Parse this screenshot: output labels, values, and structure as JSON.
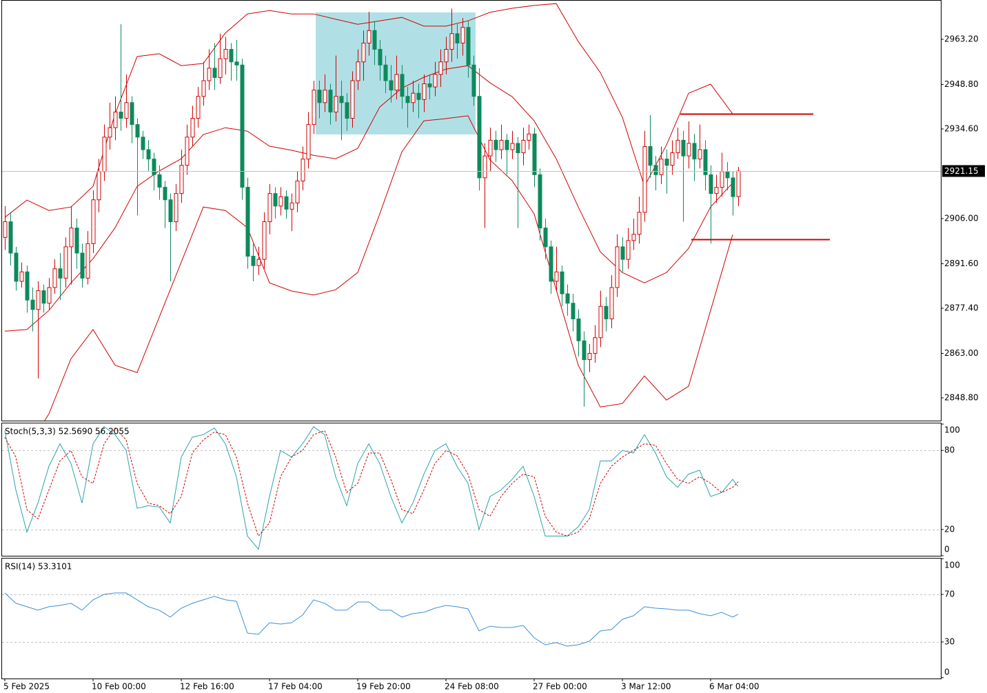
{
  "chart_data": [
    {
      "type": "candlestick",
      "open": [
        2900,
        2905,
        2895,
        2886,
        2889,
        2880,
        2877,
        2883,
        2879,
        2884,
        2890,
        2887,
        2897,
        2903,
        2895,
        2887,
        2898,
        2912,
        2921,
        2932,
        2935,
        2940,
        2938,
        2943,
        2936,
        2932,
        2928,
        2925,
        2920,
        2916,
        2912,
        2905,
        2914,
        2923,
        2932,
        2938,
        2945,
        2950,
        2954,
        2951,
        2957,
        2960,
        2956,
        2955,
        2916,
        2894,
        2891,
        2893,
        2905,
        2914,
        2910,
        2913,
        2909,
        2911,
        2918,
        2925,
        2936,
        2947,
        2943,
        2947,
        2940,
        2945,
        2943,
        2938,
        2950,
        2956,
        2962,
        2966,
        2960,
        2955,
        2950,
        2947,
        2952,
        2945,
        2943,
        2946,
        2944,
        2949,
        2948,
        2952,
        2956,
        2960,
        2965,
        2962,
        2967,
        2955,
        2945,
        2919,
        2926,
        2931,
        2928,
        2931,
        2928,
        2930,
        2927,
        2931,
        2933,
        2920,
        2903,
        2897,
        2886,
        2889,
        2882,
        2879,
        2874,
        2867,
        2861,
        2863,
        2868,
        2878,
        2874,
        2884,
        2897,
        2893,
        2899,
        2901,
        2908,
        2929,
        2923,
        2920,
        2925,
        2923,
        2927,
        2931,
        2926,
        2930,
        2925,
        2928,
        2920,
        2914,
        2916,
        2921,
        2919,
        2913
      ],
      "high": [
        2910,
        2908,
        2897,
        2892,
        2891,
        2884,
        2886,
        2885,
        2887,
        2893,
        2895,
        2900,
        2910,
        2906,
        2898,
        2902,
        2915,
        2925,
        2936,
        2943,
        2945,
        2968,
        2952,
        2945,
        2938,
        2934,
        2931,
        2927,
        2923,
        2918,
        2914,
        2917,
        2928,
        2936,
        2942,
        2948,
        2956,
        2960,
        2962,
        2965,
        2964,
        2962,
        2963,
        2957,
        2919,
        2898,
        2897,
        2908,
        2917,
        2916,
        2916,
        2915,
        2914,
        2921,
        2929,
        2940,
        2950,
        2950,
        2952,
        2949,
        2958,
        2950,
        2946,
        2953,
        2960,
        2966,
        2972,
        2969,
        2963,
        2958,
        2955,
        2958,
        2955,
        2948,
        2950,
        2949,
        2952,
        2952,
        2956,
        2960,
        2964,
        2973,
        2968,
        2970,
        2969,
        2958,
        2954,
        2930,
        2935,
        2934,
        2936,
        2933,
        2934,
        2932,
        2935,
        2936,
        2935,
        2922,
        2906,
        2899,
        2897,
        2891,
        2885,
        2882,
        2877,
        2870,
        2866,
        2872,
        2883,
        2881,
        2888,
        2901,
        2900,
        2903,
        2906,
        2913,
        2934,
        2939,
        2926,
        2929,
        2928,
        2931,
        2935,
        2934,
        2937,
        2933,
        2936,
        2931,
        2923,
        2920,
        2927,
        2924,
        2921,
        2922.5
      ],
      "low": [
        2896,
        2891,
        2883,
        2884,
        2876,
        2870,
        2855,
        2876,
        2877,
        2882,
        2880,
        2884,
        2885,
        2890,
        2884,
        2885,
        2895,
        2908,
        2918,
        2928,
        2931,
        2934,
        2935,
        2930,
        2907,
        2925,
        2921,
        2915,
        2912,
        2903,
        2886,
        2902,
        2911,
        2920,
        2929,
        2935,
        2942,
        2947,
        2947,
        2949,
        2952,
        2950,
        2950,
        2912,
        2890,
        2886,
        2888,
        2890,
        2901,
        2906,
        2907,
        2906,
        2902,
        2908,
        2915,
        2922,
        2933,
        2938,
        2940,
        2936,
        2937,
        2931,
        2934,
        2935,
        2947,
        2950,
        2958,
        2955,
        2950,
        2946,
        2943,
        2944,
        2941,
        2935,
        2940,
        2938,
        2940,
        2944,
        2945,
        2948,
        2952,
        2956,
        2957,
        2958,
        2951,
        2942,
        2915,
        2903,
        2921,
        2924,
        2925,
        2920,
        2925,
        2903,
        2923,
        2928,
        2916,
        2899,
        2893,
        2882,
        2883,
        2878,
        2875,
        2870,
        2862,
        2846,
        2857,
        2860,
        2865,
        2870,
        2871,
        2881,
        2889,
        2890,
        2896,
        2898,
        2905,
        2919,
        2915,
        2917,
        2914,
        2920,
        2925,
        2905,
        2922,
        2918,
        2922,
        2915,
        2898,
        2911,
        2913,
        2915,
        2907,
        2910
      ],
      "close": [
        2905,
        2895,
        2886,
        2889,
        2880,
        2877,
        2883,
        2879,
        2884,
        2890,
        2887,
        2897,
        2903,
        2895,
        2887,
        2898,
        2912,
        2921,
        2932,
        2935,
        2940,
        2938,
        2943,
        2936,
        2932,
        2928,
        2925,
        2920,
        2916,
        2912,
        2905,
        2914,
        2923,
        2932,
        2938,
        2945,
        2950,
        2954,
        2951,
        2957,
        2960,
        2956,
        2955,
        2916,
        2894,
        2891,
        2893,
        2905,
        2914,
        2910,
        2913,
        2909,
        2911,
        2918,
        2925,
        2936,
        2947,
        2943,
        2947,
        2940,
        2945,
        2943,
        2938,
        2950,
        2956,
        2962,
        2966,
        2960,
        2955,
        2950,
        2947,
        2952,
        2945,
        2943,
        2946,
        2944,
        2949,
        2948,
        2952,
        2956,
        2960,
        2965,
        2962,
        2967,
        2955,
        2945,
        2919,
        2926,
        2931,
        2928,
        2931,
        2928,
        2930,
        2927,
        2931,
        2933,
        2920,
        2903,
        2897,
        2886,
        2889,
        2882,
        2879,
        2874,
        2867,
        2861,
        2863,
        2868,
        2878,
        2874,
        2884,
        2897,
        2893,
        2899,
        2901,
        2908,
        2929,
        2923,
        2920,
        2925,
        2923,
        2927,
        2931,
        2926,
        2930,
        2925,
        2928,
        2920,
        2914,
        2916,
        2921,
        2919,
        2913,
        2921.15
      ],
      "up_color": "#d00000",
      "down_color": "#0d8a5c",
      "bands": {
        "color": "#d00000",
        "x": [
          0,
          4,
          8,
          12,
          16,
          20,
          24,
          28,
          32,
          36,
          40,
          44,
          48,
          52,
          56,
          60,
          64,
          68,
          72,
          76,
          80,
          84,
          88,
          92,
          96,
          100,
          104,
          108,
          112,
          116,
          120,
          124,
          128,
          132
        ],
        "upper": [
          2906.4,
          2911.9,
          2908.6,
          2909.7,
          2916.3,
          2939.4,
          2957.7,
          2958.6,
          2954.8,
          2955.5,
          2965.2,
          2971.3,
          2972.4,
          2971.3,
          2971.3,
          2969.6,
          2968.0,
          2969.1,
          2970.2,
          2967.4,
          2967.4,
          2969.1,
          2971.8,
          2973.1,
          2974.0,
          2974.6,
          2962.5,
          2952.6,
          2938.3,
          2916.3,
          2929.5,
          2946.0,
          2948.9,
          2939.4
        ],
        "middle": [
          2870.1,
          2870.6,
          2876.7,
          2885.5,
          2893.2,
          2903.1,
          2916.3,
          2921.2,
          2925.1,
          2932.8,
          2935.0,
          2933.9,
          2929.1,
          2927.8,
          2926.2,
          2925.1,
          2928.4,
          2941.6,
          2947.6,
          2951.1,
          2953.7,
          2954.8,
          2949.3,
          2944.9,
          2937.2,
          2925.1,
          2909.7,
          2895.4,
          2888.8,
          2885.5,
          2888.8,
          2896.5,
          2909.7,
          2917.4
        ],
        "lower": [
          2832.7,
          2832.7,
          2843.7,
          2861.3,
          2870.6,
          2859.2,
          2856.9,
          2874.5,
          2892.1,
          2909.7,
          2908.6,
          2903.1,
          2885.5,
          2882.9,
          2881.6,
          2883.3,
          2888.8,
          2907.5,
          2927.3,
          2937.2,
          2937.9,
          2938.8,
          2924.7,
          2918.1,
          2907.5,
          2883.3,
          2859.2,
          2845.9,
          2847.0,
          2855.8,
          2848.1,
          2852.5,
          2876.7,
          2900.9
        ]
      },
      "last_price": 2921.15,
      "last_color": "#000000",
      "xlim": [
        -0.5,
        169.75
      ],
      "ylim": [
        2841.54,
        2975.74
      ],
      "yticks": [
        {
          "value": 2963.2,
          "label": "2963.20"
        },
        {
          "value": 2948.8,
          "label": "2948.80"
        },
        {
          "value": 2934.6,
          "label": "2934.60"
        },
        {
          "value": 2906.0,
          "label": "2906.00"
        },
        {
          "value": 2891.6,
          "label": "2891.60"
        },
        {
          "value": 2877.4,
          "label": "2877.40"
        },
        {
          "value": 2863.0,
          "label": "2863.00"
        },
        {
          "value": 2848.8,
          "label": "2848.80"
        }
      ]
    },
    {
      "type": "line",
      "title": "Stoch(5,3,3) 52.5690 56.2055",
      "x": [
        0,
        2,
        4,
        6,
        8,
        10,
        12,
        14,
        16,
        18,
        20,
        22,
        24,
        26,
        28,
        30,
        32,
        34,
        36,
        38,
        40,
        42,
        44,
        46,
        48,
        50,
        52,
        54,
        56,
        58,
        60,
        62,
        64,
        66,
        68,
        70,
        72,
        74,
        76,
        78,
        80,
        82,
        84,
        86,
        88,
        90,
        92,
        94,
        96,
        98,
        100,
        102,
        104,
        106,
        108,
        110,
        112,
        114,
        116,
        118,
        120,
        122,
        124,
        126,
        128,
        130,
        132,
        133
      ],
      "series": [
        {
          "color": "#2aa3a8",
          "dash": false,
          "values": [
            95,
            50,
            18,
            40,
            68,
            85,
            70,
            40,
            85,
            98,
            92,
            80,
            36,
            38,
            37,
            25,
            75,
            90,
            92,
            97,
            85,
            60,
            15,
            5,
            45,
            80,
            75,
            85,
            98,
            92,
            60,
            38,
            70,
            85,
            70,
            45,
            25,
            40,
            62,
            80,
            85,
            68,
            55,
            20,
            45,
            50,
            58,
            68,
            45,
            15,
            15,
            15,
            22,
            35,
            72,
            72,
            80,
            78,
            92,
            78,
            60,
            52,
            62,
            65,
            45,
            48,
            58,
            52.569
          ]
        },
        {
          "color": "#d00000",
          "dash": true,
          "values": [
            90,
            75,
            35,
            28,
            50,
            72,
            80,
            60,
            55,
            85,
            97,
            88,
            55,
            40,
            38,
            32,
            45,
            78,
            88,
            94,
            92,
            75,
            40,
            15,
            25,
            60,
            75,
            80,
            92,
            95,
            75,
            48,
            55,
            78,
            78,
            58,
            35,
            32,
            50,
            70,
            80,
            76,
            62,
            35,
            30,
            45,
            55,
            62,
            60,
            30,
            18,
            15,
            18,
            28,
            55,
            68,
            75,
            80,
            85,
            84,
            70,
            58,
            55,
            60,
            55,
            48,
            52,
            56.2055
          ]
        }
      ],
      "xlim": [
        -0.5,
        169.75
      ],
      "ylim": [
        0,
        100
      ],
      "yticks": [
        0,
        20,
        80,
        100
      ],
      "levels": [
        20,
        80
      ]
    },
    {
      "type": "line",
      "title": "RSI(14) 53.3101",
      "x": [
        0,
        2,
        4,
        6,
        8,
        10,
        12,
        14,
        16,
        18,
        20,
        22,
        24,
        26,
        28,
        30,
        32,
        34,
        36,
        38,
        40,
        42,
        44,
        46,
        48,
        50,
        52,
        54,
        56,
        58,
        60,
        62,
        64,
        66,
        68,
        70,
        72,
        74,
        76,
        78,
        80,
        82,
        84,
        86,
        88,
        90,
        92,
        94,
        96,
        98,
        100,
        102,
        104,
        106,
        108,
        110,
        112,
        114,
        116,
        118,
        120,
        122,
        124,
        126,
        128,
        130,
        132,
        133
      ],
      "series": [
        {
          "color": "#3a8fd8",
          "dash": false,
          "values": [
            71.2,
            62.5,
            59.6,
            56.7,
            59.6,
            60.7,
            62.5,
            56.7,
            65.4,
            70.0,
            71.2,
            71.2,
            65.4,
            59.6,
            56.7,
            50.9,
            58.4,
            62.5,
            65.4,
            68.3,
            65.4,
            64.2,
            37.5,
            36.4,
            46.2,
            45.1,
            46.2,
            52.6,
            65.4,
            62.5,
            56.7,
            56.7,
            63.6,
            63.6,
            56.7,
            56.7,
            50.9,
            53.8,
            54.9,
            58.4,
            60.7,
            59.6,
            57.8,
            39.3,
            43.3,
            42.2,
            42.2,
            43.9,
            33.5,
            27.7,
            29.4,
            26.5,
            27.7,
            30.6,
            39.3,
            40.4,
            49.1,
            52.0,
            59.6,
            58.4,
            57.8,
            56.7,
            56.7,
            53.8,
            52.0,
            54.9,
            50.9,
            53.3101
          ]
        }
      ],
      "xlim": [
        -0.5,
        169.75
      ],
      "ylim": [
        0,
        100
      ],
      "yticks": [
        0,
        30,
        70,
        100
      ],
      "levels": [
        30,
        70
      ],
      "xticks": [
        {
          "value": 0,
          "label": "5 Feb 2025"
        },
        {
          "value": 16,
          "label": "10 Feb 00:00"
        },
        {
          "value": 32,
          "label": "12 Feb 16:00"
        },
        {
          "value": 48,
          "label": "17 Feb 04:00"
        },
        {
          "value": 64,
          "label": "19 Feb 20:00"
        },
        {
          "value": 80,
          "label": "24 Feb 08:00"
        },
        {
          "value": 96,
          "label": "27 Feb 00:00"
        },
        {
          "value": 112,
          "label": "3 Mar 12:00"
        },
        {
          "value": 128,
          "label": "6 Mar 04:00"
        }
      ]
    }
  ]
}
